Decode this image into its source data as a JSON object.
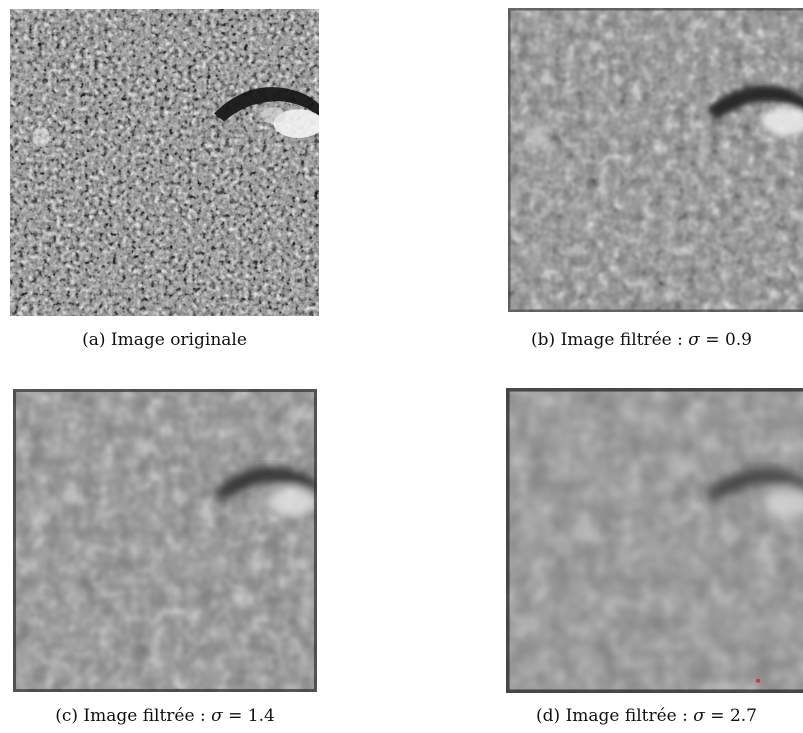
{
  "figure": {
    "panels": [
      {
        "id": "a",
        "caption_prefix": "(a) Image originale",
        "caption_eq": ""
      },
      {
        "id": "b",
        "caption_prefix": "(b) Image filtrée : ",
        "caption_sym": "σ",
        "caption_eq": " = 0.9"
      },
      {
        "id": "c",
        "caption_prefix": "(c) Image filtrée : ",
        "caption_sym": "σ",
        "caption_eq": " = 1.4"
      },
      {
        "id": "d",
        "caption_prefix": "(d) Image filtrée : ",
        "caption_sym": "σ",
        "caption_eq": " = 2.7"
      }
    ]
  }
}
